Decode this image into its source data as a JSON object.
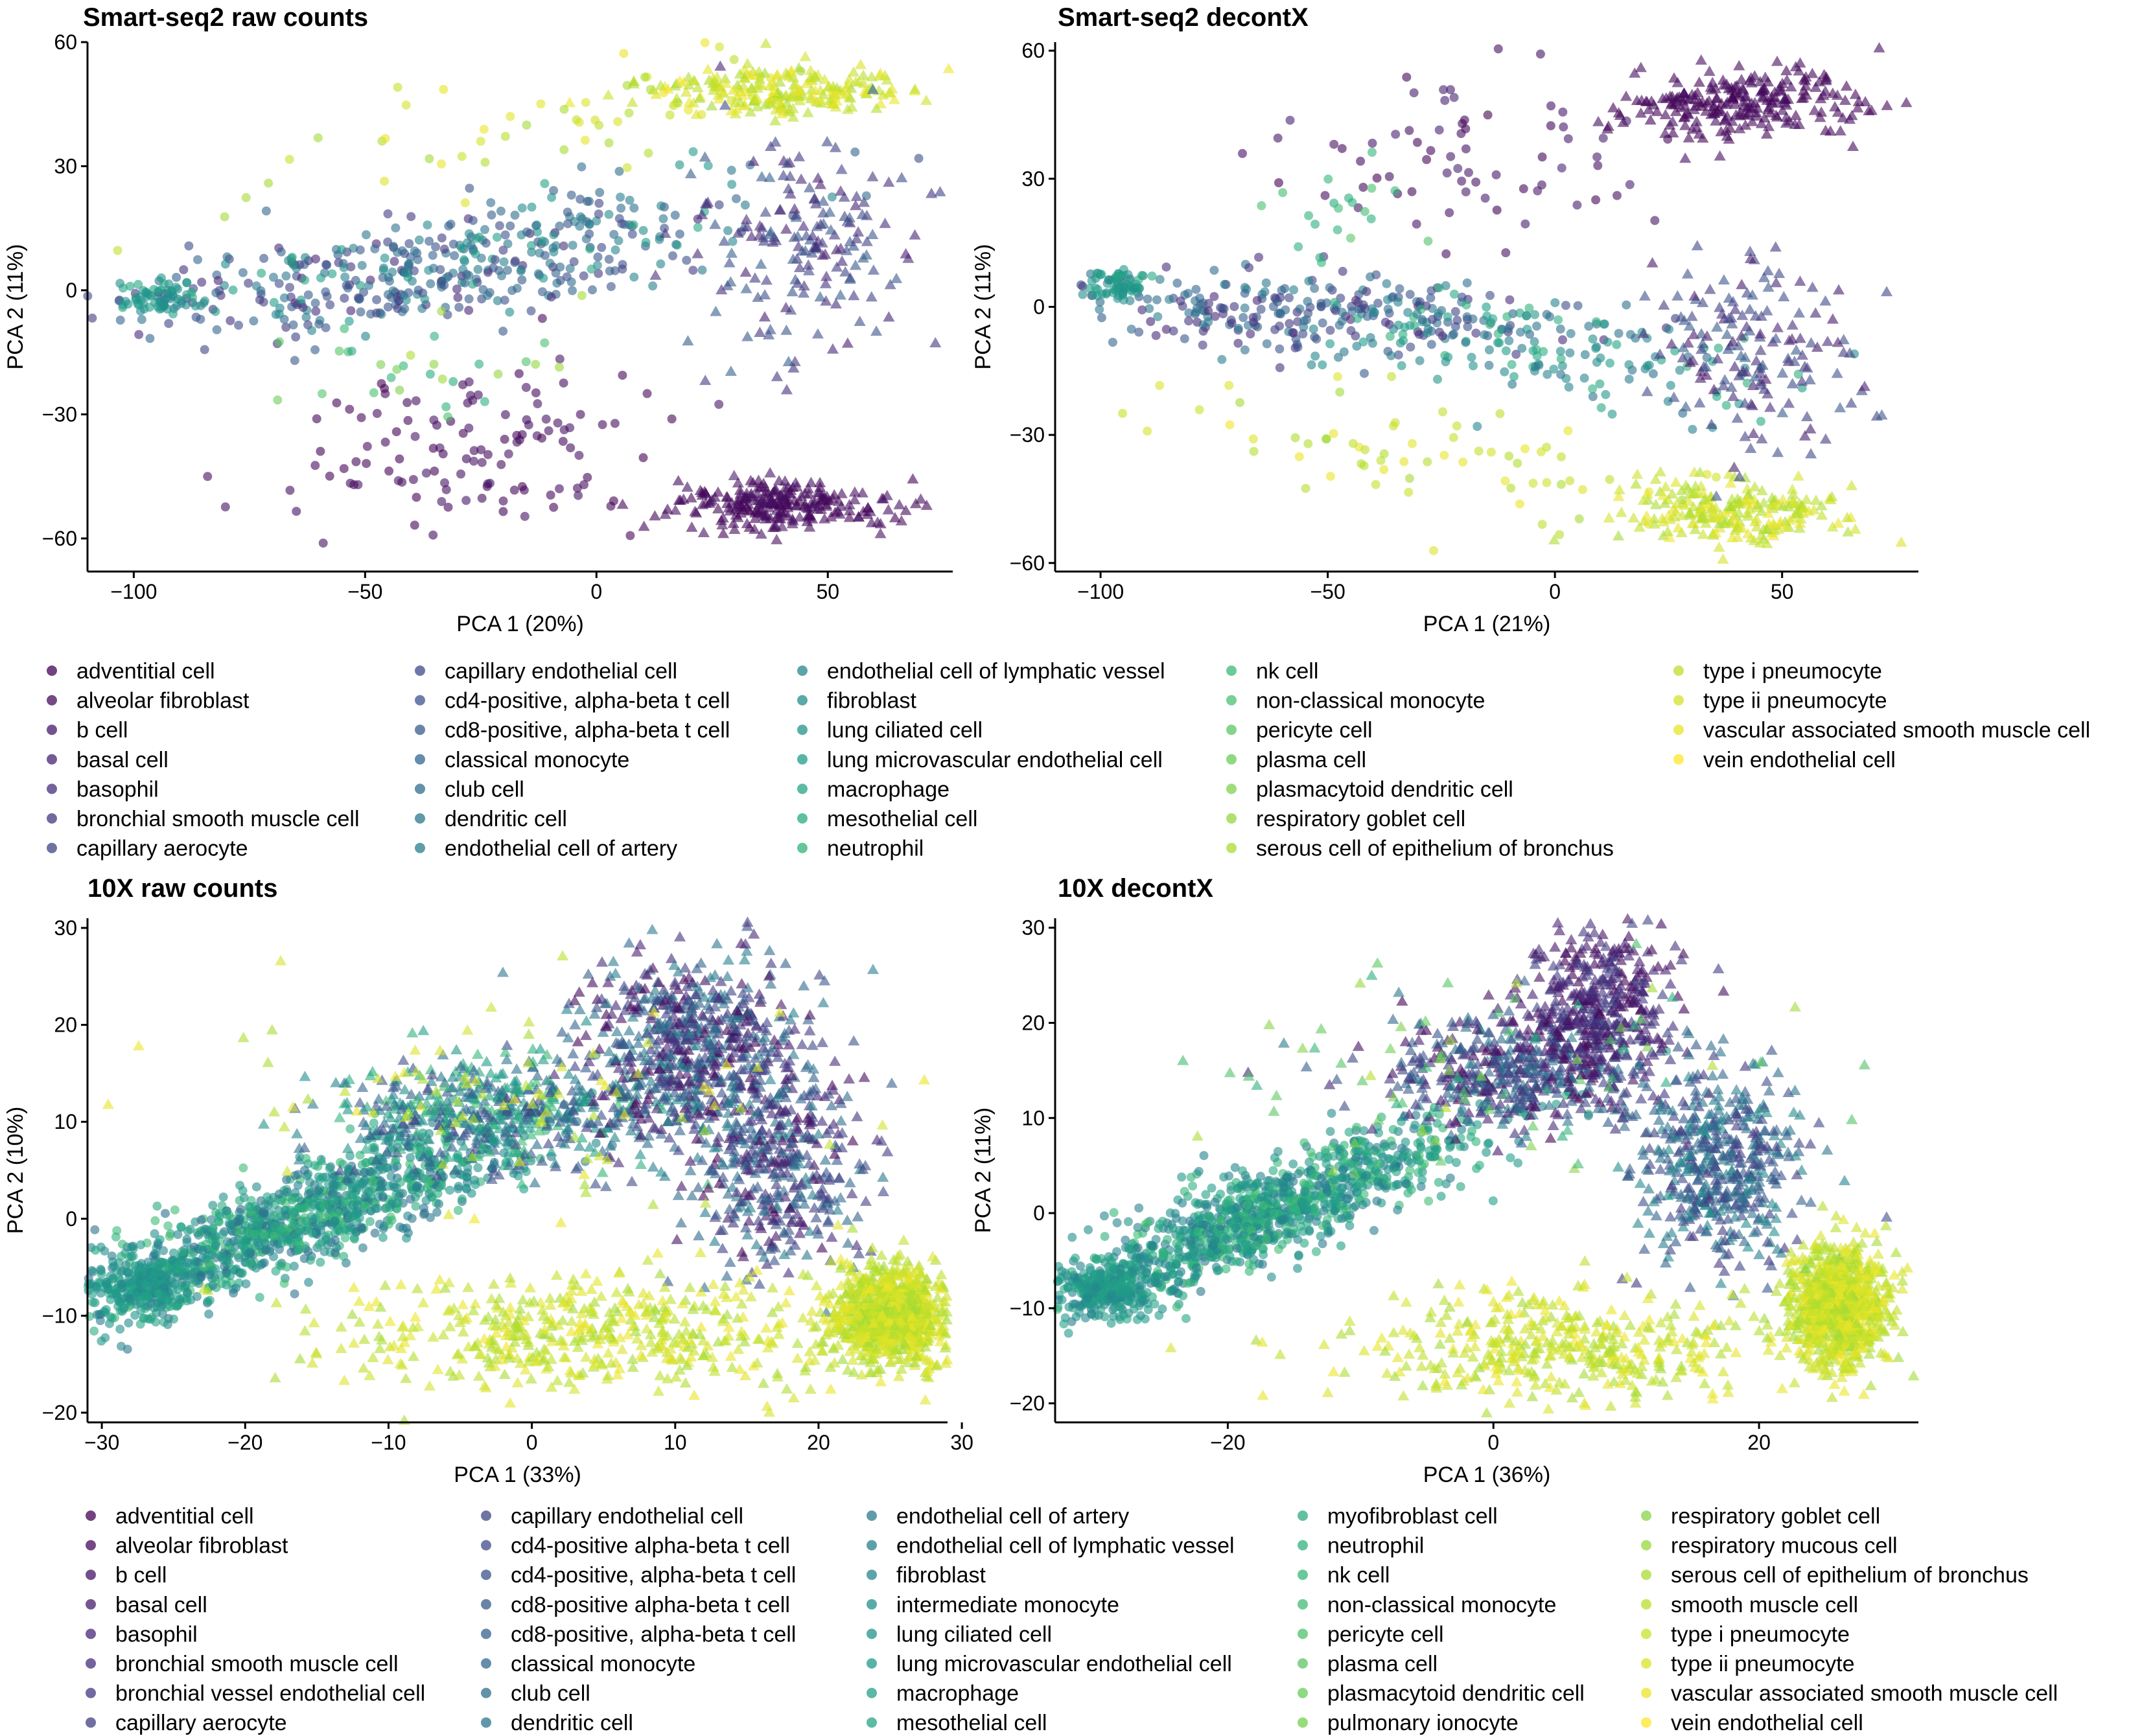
{
  "chart_data": [
    {
      "type": "scatter",
      "title": "Smart-seq2 raw counts",
      "xlabel": "PCA 1 (20%)",
      "ylabel": "PCA 2 (11%)",
      "xlim": [
        -110,
        77
      ],
      "ylim": [
        -68,
        60
      ],
      "xticks": [
        -100,
        -50,
        0,
        50
      ],
      "yticks": [
        -60,
        -30,
        0,
        30,
        60
      ],
      "grid": false,
      "legend": "bottom",
      "clusters": [
        {
          "cx": -45,
          "cy": 3,
          "sx": 30,
          "sy": 6,
          "n": 280,
          "c0": 0.1,
          "c1": 0.45,
          "shape": "circle",
          "slope": 0.12
        },
        {
          "cx": -15,
          "cy": 12,
          "sx": 28,
          "sy": 7,
          "n": 160,
          "c0": 0.2,
          "c1": 0.6,
          "shape": "circle",
          "slope": 0.2
        },
        {
          "cx": -93,
          "cy": -2,
          "sx": 5,
          "sy": 2,
          "n": 70,
          "c0": 0.45,
          "c1": 0.6,
          "shape": "circle"
        },
        {
          "cx": 40,
          "cy": 48,
          "sx": 14,
          "sy": 3,
          "n": 220,
          "c0": 0.86,
          "c1": 0.98,
          "shape": "triangle"
        },
        {
          "cx": -15,
          "cy": 40,
          "sx": 35,
          "sy": 8,
          "n": 60,
          "c0": 0.86,
          "c1": 0.98,
          "shape": "circle",
          "slope": 0.2
        },
        {
          "cx": 40,
          "cy": -52,
          "sx": 12,
          "sy": 3,
          "n": 240,
          "c0": 0.0,
          "c1": 0.05,
          "shape": "triangle"
        },
        {
          "cx": -25,
          "cy": -40,
          "sx": 20,
          "sy": 10,
          "n": 120,
          "c0": 0.0,
          "c1": 0.06,
          "shape": "circle"
        },
        {
          "cx": 45,
          "cy": 10,
          "sx": 12,
          "sy": 14,
          "n": 180,
          "c0": 0.08,
          "c1": 0.3,
          "shape": "triangle"
        },
        {
          "cx": -40,
          "cy": -20,
          "sx": 20,
          "sy": 8,
          "n": 30,
          "c0": 0.6,
          "c1": 0.9,
          "shape": "circle"
        }
      ]
    },
    {
      "type": "scatter",
      "title": "Smart-seq2 decontX",
      "xlabel": "PCA 1 (21%)",
      "ylabel": "PCA 2 (11%)",
      "xlim": [
        -110,
        80
      ],
      "ylim": [
        -62,
        62
      ],
      "xticks": [
        -100,
        -50,
        0,
        50
      ],
      "yticks": [
        -60,
        -30,
        0,
        30,
        60
      ],
      "grid": false,
      "legend": "bottom",
      "clusters": [
        {
          "cx": -55,
          "cy": -1,
          "sx": 28,
          "sy": 5,
          "n": 260,
          "c0": 0.1,
          "c1": 0.45,
          "shape": "circle",
          "slope": -0.06
        },
        {
          "cx": -5,
          "cy": -10,
          "sx": 25,
          "sy": 6,
          "n": 160,
          "c0": 0.35,
          "c1": 0.65,
          "shape": "circle",
          "slope": -0.12
        },
        {
          "cx": -96,
          "cy": 5,
          "sx": 4,
          "sy": 2,
          "n": 60,
          "c0": 0.45,
          "c1": 0.6,
          "shape": "circle"
        },
        {
          "cx": 40,
          "cy": 48,
          "sx": 13,
          "sy": 4,
          "n": 240,
          "c0": 0.0,
          "c1": 0.04,
          "shape": "triangle"
        },
        {
          "cx": -20,
          "cy": 35,
          "sx": 20,
          "sy": 10,
          "n": 70,
          "c0": 0.0,
          "c1": 0.1,
          "shape": "circle"
        },
        {
          "cx": 40,
          "cy": -48,
          "sx": 12,
          "sy": 4,
          "n": 220,
          "c0": 0.86,
          "c1": 0.98,
          "shape": "triangle"
        },
        {
          "cx": -30,
          "cy": -35,
          "sx": 30,
          "sy": 6,
          "n": 70,
          "c0": 0.86,
          "c1": 0.98,
          "shape": "circle",
          "slope": -0.2
        },
        {
          "cx": 45,
          "cy": -10,
          "sx": 12,
          "sy": 10,
          "n": 160,
          "c0": 0.05,
          "c1": 0.3,
          "shape": "triangle"
        },
        {
          "cx": -50,
          "cy": 20,
          "sx": 10,
          "sy": 6,
          "n": 20,
          "c0": 0.6,
          "c1": 0.75,
          "shape": "circle"
        }
      ]
    },
    {
      "type": "scatter",
      "title": "10X raw counts",
      "xlabel": "PCA 1 (33%)",
      "ylabel": "PCA 2 (10%)",
      "xlim": [
        -31,
        29
      ],
      "ylim": [
        -21,
        31
      ],
      "xticks": [
        -30,
        -20,
        -10,
        0,
        10,
        20,
        30
      ],
      "yticks": [
        -20,
        -10,
        0,
        10,
        20,
        30
      ],
      "grid": false,
      "legend": "bottom",
      "clusters": [
        {
          "cx": -16,
          "cy": 0,
          "sx": 8,
          "sy": 2.5,
          "n": 1100,
          "c0": 0.35,
          "c1": 0.7,
          "shape": "circle",
          "slope": 0.55
        },
        {
          "cx": -27,
          "cy": -7,
          "sx": 2,
          "sy": 1.5,
          "n": 250,
          "c0": 0.45,
          "c1": 0.6,
          "shape": "circle"
        },
        {
          "cx": -3,
          "cy": 11,
          "sx": 6,
          "sy": 3,
          "n": 500,
          "c0": 0.2,
          "c1": 0.7,
          "shape": "triangle"
        },
        {
          "cx": 11,
          "cy": 17,
          "sx": 4,
          "sy": 5,
          "n": 700,
          "c0": 0.0,
          "c1": 0.45,
          "shape": "triangle"
        },
        {
          "cx": 17,
          "cy": 5,
          "sx": 3,
          "sy": 5,
          "n": 400,
          "c0": 0.0,
          "c1": 0.45,
          "shape": "triangle"
        },
        {
          "cx": 25,
          "cy": -10,
          "sx": 2,
          "sy": 2.5,
          "n": 900,
          "c0": 0.86,
          "c1": 0.98,
          "shape": "triangle"
        },
        {
          "cx": 5,
          "cy": -12,
          "sx": 10,
          "sy": 3,
          "n": 500,
          "c0": 0.86,
          "c1": 0.98,
          "shape": "triangle"
        },
        {
          "cx": 0,
          "cy": 12,
          "sx": 12,
          "sy": 5,
          "n": 90,
          "c0": 0.86,
          "c1": 0.98,
          "shape": "triangle"
        }
      ]
    },
    {
      "type": "scatter",
      "title": "10X decontX",
      "xlabel": "PCA 1 (36%)",
      "ylabel": "PCA 2 (11%)",
      "xlim": [
        -33,
        32
      ],
      "ylim": [
        -22,
        31
      ],
      "xticks": [
        -20,
        0,
        20
      ],
      "yticks": [
        -20,
        -10,
        0,
        10,
        20,
        30
      ],
      "grid": false,
      "legend": "bottom",
      "clusters": [
        {
          "cx": -17,
          "cy": 0,
          "sx": 8,
          "sy": 2.5,
          "n": 1100,
          "c0": 0.4,
          "c1": 0.7,
          "shape": "circle",
          "slope": 0.55
        },
        {
          "cx": -29,
          "cy": -8,
          "sx": 2,
          "sy": 1.5,
          "n": 250,
          "c0": 0.45,
          "c1": 0.6,
          "shape": "circle"
        },
        {
          "cx": 2,
          "cy": 15,
          "sx": 5,
          "sy": 3,
          "n": 500,
          "c0": 0.0,
          "c1": 0.45,
          "shape": "triangle"
        },
        {
          "cx": 8,
          "cy": 22,
          "sx": 3,
          "sy": 4,
          "n": 400,
          "c0": 0.0,
          "c1": 0.2,
          "shape": "triangle"
        },
        {
          "cx": 17,
          "cy": 5,
          "sx": 3,
          "sy": 5,
          "n": 500,
          "c0": 0.15,
          "c1": 0.5,
          "shape": "triangle"
        },
        {
          "cx": 26,
          "cy": -10,
          "sx": 1.8,
          "sy": 3,
          "n": 900,
          "c0": 0.86,
          "c1": 0.98,
          "shape": "triangle"
        },
        {
          "cx": 5,
          "cy": -14,
          "sx": 8,
          "sy": 3,
          "n": 400,
          "c0": 0.86,
          "c1": 0.98,
          "shape": "triangle"
        },
        {
          "cx": 0,
          "cy": 15,
          "sx": 10,
          "sy": 6,
          "n": 80,
          "c0": 0.6,
          "c1": 0.9,
          "shape": "triangle"
        }
      ]
    }
  ],
  "legend_top": {
    "columns": [
      [
        "adventitial cell",
        "alveolar fibroblast",
        "b cell",
        "basal cell",
        "basophil",
        "bronchial smooth muscle cell",
        "capillary aerocyte"
      ],
      [
        "capillary endothelial cell",
        "cd4-positive, alpha-beta t cell",
        "cd8-positive, alpha-beta t cell",
        "classical monocyte",
        "club cell",
        "dendritic cell",
        "endothelial cell of artery"
      ],
      [
        "endothelial cell of lymphatic vessel",
        "fibroblast",
        "lung ciliated cell",
        "lung microvascular endothelial cell",
        "macrophage",
        "mesothelial cell",
        "neutrophil"
      ],
      [
        "nk cell",
        "non-classical monocyte",
        "pericyte cell",
        "plasma cell",
        "plasmacytoid dendritic cell",
        "respiratory goblet cell",
        "serous cell of epithelium of bronchus"
      ],
      [
        "type i pneumocyte",
        "type ii pneumocyte",
        "vascular associated smooth muscle cell",
        "vein endothelial cell"
      ]
    ]
  },
  "legend_bottom": {
    "columns": [
      [
        "adventitial cell",
        "alveolar fibroblast",
        "b cell",
        "basal cell",
        "basophil",
        "bronchial smooth muscle cell",
        "bronchial vessel endothelial cell",
        "capillary aerocyte"
      ],
      [
        "capillary endothelial cell",
        "cd4-positive alpha-beta t cell",
        "cd4-positive, alpha-beta t cell",
        "cd8-positive alpha-beta t cell",
        "cd8-positive, alpha-beta t cell",
        "classical monocyte",
        "club cell",
        "dendritic cell"
      ],
      [
        "endothelial cell of artery",
        "endothelial cell of lymphatic vessel",
        "fibroblast",
        "intermediate monocyte",
        "lung ciliated cell",
        "lung microvascular endothelial cell",
        "macrophage",
        "mesothelial cell"
      ],
      [
        "myofibroblast cell",
        "neutrophil",
        "nk cell",
        "non-classical monocyte",
        "pericyte cell",
        "plasma cell",
        "plasmacytoid dendritic cell",
        "pulmonary ionocyte"
      ],
      [
        "respiratory goblet cell",
        "respiratory mucous cell",
        "serous cell of epithelium of bronchus",
        "smooth muscle cell",
        "type i pneumocyte",
        "type ii pneumocyte",
        "vascular associated smooth muscle cell",
        "vein endothelial cell"
      ]
    ]
  }
}
